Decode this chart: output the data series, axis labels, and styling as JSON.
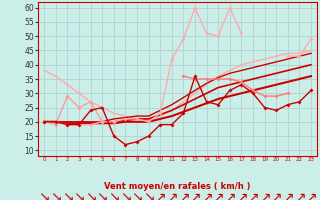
{
  "background_color": "#cceee8",
  "grid_color": "#aacccc",
  "xlabel": "Vent moyen/en rafales ( km/h )",
  "x_values": [
    0,
    1,
    2,
    3,
    4,
    5,
    6,
    7,
    8,
    9,
    10,
    11,
    12,
    13,
    14,
    15,
    16,
    17,
    18,
    19,
    20,
    21,
    22,
    23
  ],
  "ylim": [
    8,
    62
  ],
  "yticks": [
    10,
    15,
    20,
    25,
    30,
    35,
    40,
    45,
    50,
    55,
    60
  ],
  "arrow_down_indices": [
    0,
    1,
    2,
    3,
    4,
    5,
    6,
    7,
    8,
    9
  ],
  "lines": [
    {
      "y": [
        38,
        36,
        33,
        30,
        27,
        25,
        23,
        22,
        21,
        21,
        22,
        24,
        27,
        30,
        33,
        36,
        38,
        40,
        41,
        42,
        43,
        44,
        44,
        45
      ],
      "color": "#ffaaaa",
      "lw": 1.0,
      "marker": null,
      "zorder": 2
    },
    {
      "y": [
        20,
        20,
        19.5,
        19.5,
        19.5,
        19.5,
        19.5,
        20,
        20,
        20,
        21,
        22,
        23.5,
        25,
        26.5,
        28,
        29,
        30,
        31,
        32,
        33,
        34,
        35,
        36
      ],
      "color": "#cc0000",
      "lw": 1.5,
      "marker": null,
      "zorder": 3
    },
    {
      "y": [
        20,
        20,
        19.5,
        19.5,
        19.5,
        19.5,
        20,
        20.5,
        21,
        21,
        22.5,
        24,
        26,
        28,
        30,
        32,
        33,
        34,
        35,
        36,
        37,
        38,
        39,
        40
      ],
      "color": "#cc0000",
      "lw": 1.2,
      "marker": null,
      "zorder": 3
    },
    {
      "y": [
        20,
        20,
        20,
        20,
        20,
        20,
        21,
        21.5,
        22,
        22,
        24,
        26,
        28.5,
        31,
        33.5,
        35.5,
        37,
        38,
        39,
        40,
        41,
        42,
        43,
        44
      ],
      "color": "#cc0000",
      "lw": 1.0,
      "marker": null,
      "zorder": 3
    },
    {
      "y": [
        20,
        20,
        19,
        19,
        24,
        25,
        15,
        12,
        13,
        15,
        19,
        19,
        23,
        36,
        27,
        26,
        31,
        33,
        30,
        25,
        24,
        26,
        27,
        31
      ],
      "color": "#cc0000",
      "lw": 1.0,
      "marker": "D",
      "marker_size": 2.0,
      "zorder": 5
    },
    {
      "y": [
        null,
        null,
        null,
        null,
        null,
        null,
        null,
        null,
        null,
        null,
        null,
        null,
        36,
        35,
        35,
        35,
        35,
        34,
        31,
        29,
        29,
        30,
        null,
        null
      ],
      "color": "#ff7777",
      "lw": 1.0,
      "marker": "D",
      "marker_size": 2.0,
      "zorder": 4
    },
    {
      "y": [
        20,
        19,
        29,
        25,
        27,
        20,
        null,
        null,
        null,
        null,
        null,
        null,
        null,
        null,
        null,
        null,
        null,
        null,
        null,
        null,
        null,
        null,
        null,
        null
      ],
      "color": "#ff9999",
      "lw": 1.0,
      "marker": "D",
      "marker_size": 2.0,
      "zorder": 4
    },
    {
      "y": [
        20,
        20,
        19,
        19,
        19,
        20,
        20,
        21,
        21,
        20,
        23,
        42,
        49,
        60,
        51,
        50,
        60,
        51,
        null,
        null,
        null,
        43,
        43,
        49
      ],
      "color": "#ffaaaa",
      "lw": 1.0,
      "marker": "D",
      "marker_size": 2.0,
      "zorder": 4
    }
  ]
}
